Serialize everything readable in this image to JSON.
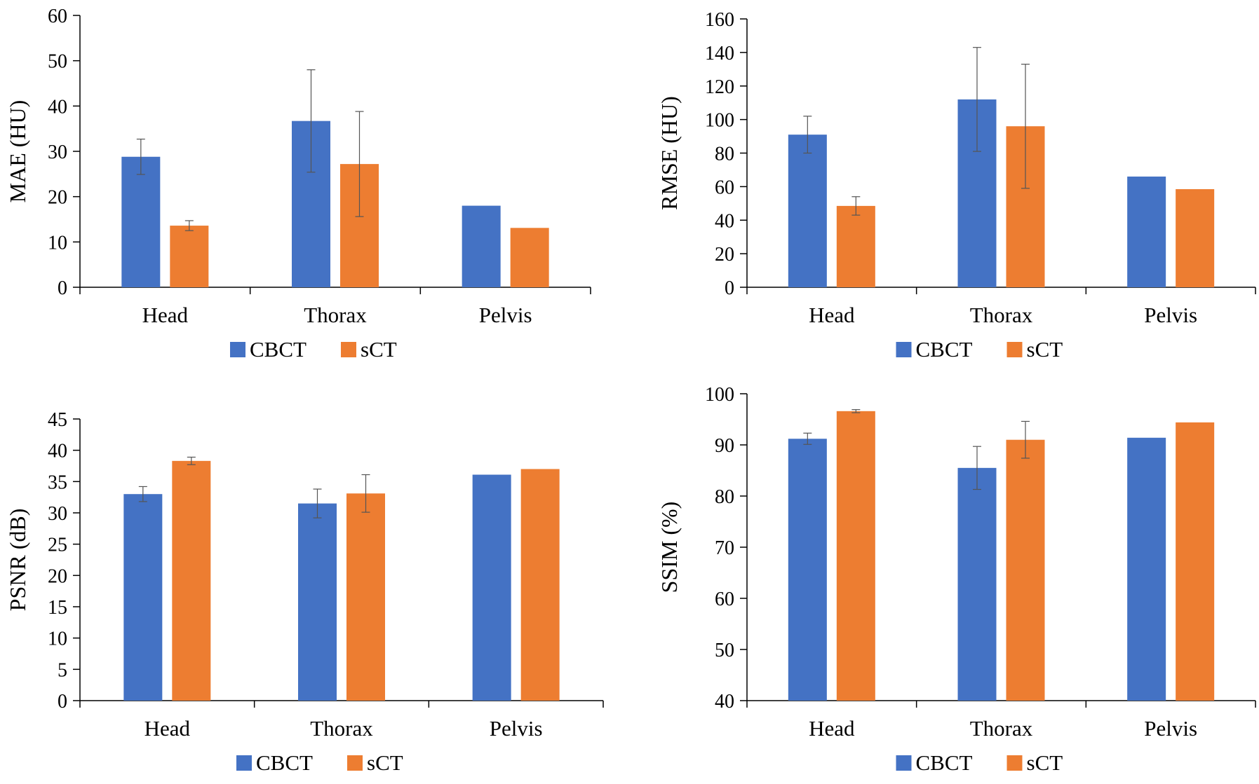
{
  "chart_data": [
    {
      "type": "bar",
      "title": "",
      "xlabel": "",
      "ylabel": "MAE (HU)",
      "categories": [
        "Head",
        "Thorax",
        "Pelvis"
      ],
      "ylim": [
        0,
        60
      ],
      "yticks": [
        0,
        10,
        20,
        30,
        40,
        50,
        60
      ],
      "grid": false,
      "legend_position": "bottom",
      "series": [
        {
          "name": "CBCT",
          "color": "#4472C4",
          "values": [
            28.8,
            36.7,
            18.0
          ],
          "errors": [
            3.9,
            11.3,
            null
          ]
        },
        {
          "name": "sCT",
          "color": "#ED7D31",
          "values": [
            13.6,
            27.2,
            13.1
          ],
          "errors": [
            1.1,
            11.6,
            null
          ]
        }
      ]
    },
    {
      "type": "bar",
      "title": "",
      "xlabel": "",
      "ylabel": "RMSE (HU)",
      "categories": [
        "Head",
        "Thorax",
        "Pelvis"
      ],
      "ylim": [
        0,
        160
      ],
      "yticks": [
        0,
        20,
        40,
        60,
        80,
        100,
        120,
        140,
        160
      ],
      "grid": false,
      "legend_position": "bottom",
      "series": [
        {
          "name": "CBCT",
          "color": "#4472C4",
          "values": [
            91,
            112,
            66
          ],
          "errors": [
            11,
            31,
            null
          ]
        },
        {
          "name": "sCT",
          "color": "#ED7D31",
          "values": [
            48.5,
            96,
            58.5
          ],
          "errors": [
            5.5,
            37,
            null
          ]
        }
      ]
    },
    {
      "type": "bar",
      "title": "",
      "xlabel": "",
      "ylabel": "PSNR (dB)",
      "categories": [
        "Head",
        "Thorax",
        "Pelvis"
      ],
      "ylim": [
        0,
        45
      ],
      "yticks": [
        0,
        5,
        10,
        15,
        20,
        25,
        30,
        35,
        40,
        45
      ],
      "grid": false,
      "legend_position": "bottom",
      "series": [
        {
          "name": "CBCT",
          "color": "#4472C4",
          "values": [
            33.0,
            31.5,
            36.1
          ],
          "errors": [
            1.2,
            2.3,
            null
          ]
        },
        {
          "name": "sCT",
          "color": "#ED7D31",
          "values": [
            38.3,
            33.1,
            37.0
          ],
          "errors": [
            0.6,
            3.0,
            null
          ]
        }
      ]
    },
    {
      "type": "bar",
      "title": "",
      "xlabel": "",
      "ylabel": "SSIM (%)",
      "categories": [
        "Head",
        "Thorax",
        "Pelvis"
      ],
      "ylim": [
        40,
        100
      ],
      "yticks": [
        40,
        50,
        60,
        70,
        80,
        90,
        100
      ],
      "grid": false,
      "legend_position": "bottom",
      "series": [
        {
          "name": "CBCT",
          "color": "#4472C4",
          "values": [
            91.2,
            85.5,
            91.4
          ],
          "errors": [
            1.1,
            4.2,
            null
          ]
        },
        {
          "name": "sCT",
          "color": "#ED7D31",
          "values": [
            96.6,
            91.0,
            94.4
          ],
          "errors": [
            0.3,
            3.6,
            null
          ]
        }
      ]
    }
  ]
}
